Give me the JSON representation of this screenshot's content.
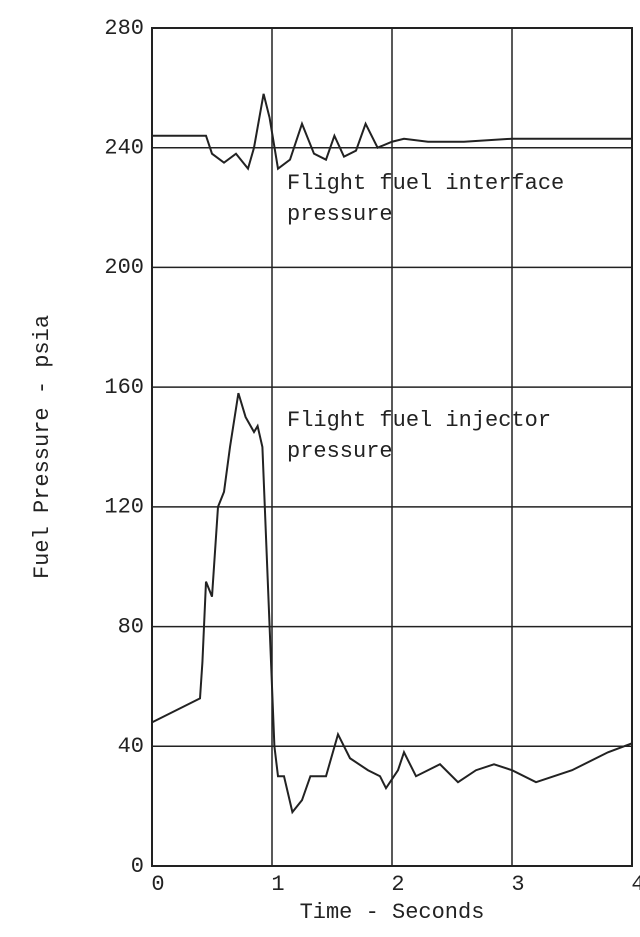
{
  "chart_data": {
    "type": "line",
    "xlabel": "Time - Seconds",
    "ylabel": "Fuel Pressure - psia",
    "xlim": [
      0,
      4
    ],
    "xticks": [
      0,
      1,
      2,
      3,
      4
    ],
    "ylim": [
      0,
      280
    ],
    "yticks": [
      0,
      40,
      80,
      120,
      160,
      200,
      240,
      280
    ],
    "grid": true,
    "annotations": [
      [
        "Flight fuel interface",
        "pressure"
      ],
      [
        "Flight fuel injector",
        "pressure"
      ]
    ],
    "series": [
      {
        "color": "#222222",
        "x": [
          0,
          0.45,
          0.5,
          0.6,
          0.7,
          0.8,
          0.85,
          0.93,
          0.98,
          1.05,
          1.15,
          1.25,
          1.35,
          1.45,
          1.52,
          1.6,
          1.7,
          1.78,
          1.88,
          2.0,
          2.1,
          2.3,
          2.6,
          3.0,
          3.5,
          4.0
        ],
        "values": [
          244,
          244,
          238,
          235,
          238,
          233,
          240,
          258,
          250,
          233,
          236,
          248,
          238,
          236,
          244,
          237,
          239,
          248,
          240,
          242,
          243,
          242,
          242,
          243,
          243,
          243
        ]
      },
      {
        "color": "#222222",
        "x": [
          0,
          0.4,
          0.42,
          0.45,
          0.5,
          0.55,
          0.6,
          0.65,
          0.72,
          0.78,
          0.85,
          0.88,
          0.92,
          0.98,
          1.02,
          1.05,
          1.1,
          1.17,
          1.25,
          1.32,
          1.45,
          1.55,
          1.65,
          1.8,
          1.9,
          1.95,
          2.05,
          2.1,
          2.2,
          2.4,
          2.55,
          2.7,
          2.85,
          3.0,
          3.2,
          3.5,
          3.8,
          4.0
        ],
        "values": [
          48,
          56,
          68,
          95,
          90,
          120,
          125,
          140,
          158,
          150,
          145,
          147,
          140,
          80,
          40,
          30,
          30,
          18,
          22,
          30,
          30,
          44,
          36,
          32,
          30,
          26,
          32,
          38,
          30,
          34,
          28,
          32,
          34,
          32,
          28,
          32,
          38,
          41
        ]
      }
    ]
  }
}
